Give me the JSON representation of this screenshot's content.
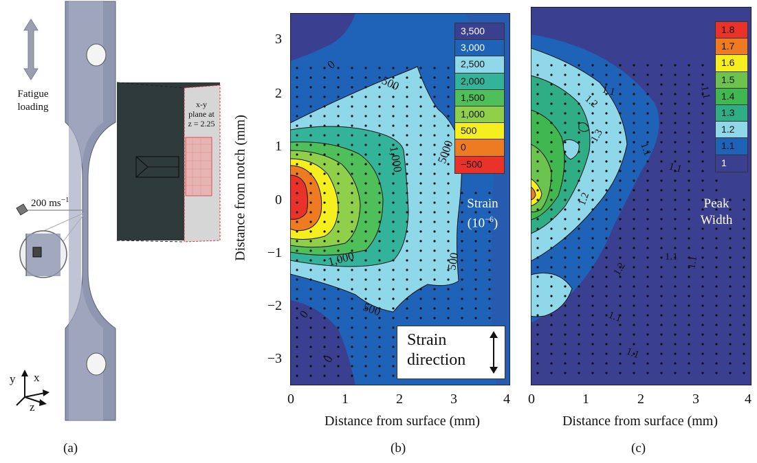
{
  "panel_a": {
    "label": "(a)",
    "fatigue_label_1": "Fatigue",
    "fatigue_label_2": "loading",
    "speed_label": "200 ms",
    "speed_exp": "−1",
    "inset_line1": "x-y",
    "inset_line2": "plane at",
    "inset_line3": "z = 2.25",
    "axis_y": "y",
    "axis_x": "x",
    "axis_z": "z"
  },
  "panel_b": {
    "label": "(b)",
    "ylabel": "Distance from notch (mm)",
    "xlabel": "Distance from surface (mm)",
    "y_ticks": [
      "3",
      "2",
      "1",
      "0",
      "−1",
      "−2",
      "−3"
    ],
    "x_ticks": [
      "0",
      "1",
      "2",
      "3",
      "4"
    ],
    "legend_title": "Strain",
    "legend_unit": "(10",
    "legend_unit_exp": "−6",
    "legend_unit_close": ")",
    "legend": [
      {
        "label": "3,500",
        "color": "#3b3f8f"
      },
      {
        "label": "3,000",
        "color": "#1f63b8"
      },
      {
        "label": "2,500",
        "color": "#8fd8ea"
      },
      {
        "label": "2,000",
        "color": "#33b39a"
      },
      {
        "label": "1,500",
        "color": "#4fbf5a"
      },
      {
        "label": "1,000",
        "color": "#8fcf4a"
      },
      {
        "label": "500",
        "color": "#f6ef1f"
      },
      {
        "label": "0",
        "color": "#ee7a22"
      },
      {
        "label": "−500",
        "color": "#e8322a"
      }
    ],
    "contour_labels": [
      "0",
      "500",
      "1,000",
      "1,000",
      "5000",
      "500",
      "1,000",
      "500",
      "0",
      "0"
    ],
    "strain_box_1": "Strain",
    "strain_box_2": "direction"
  },
  "panel_c": {
    "label": "(c)",
    "xlabel": "Distance from surface (mm)",
    "x_ticks": [
      "0",
      "1",
      "2",
      "3",
      "4"
    ],
    "legend_title_1": "Peak",
    "legend_title_2": "Width",
    "legend": [
      {
        "label": "1.8",
        "color": "#e8322a"
      },
      {
        "label": "1.7",
        "color": "#ee7a22"
      },
      {
        "label": "1.6",
        "color": "#f6ef1f"
      },
      {
        "label": "1.5",
        "color": "#6cc44e"
      },
      {
        "label": "1.4",
        "color": "#40b84f"
      },
      {
        "label": "1.3",
        "color": "#2fae86"
      },
      {
        "label": "1.2",
        "color": "#8fd8ea"
      },
      {
        "label": "1.1",
        "color": "#1f63b8"
      },
      {
        "label": "1",
        "color": "#3b3f8f"
      }
    ],
    "contour_labels": [
      "1.1",
      "1.2",
      "1.1",
      "1.3",
      "1.1",
      "1.2",
      "1.1",
      "1.1",
      "1.2",
      "1.1",
      "1.1",
      "1.1"
    ]
  }
}
